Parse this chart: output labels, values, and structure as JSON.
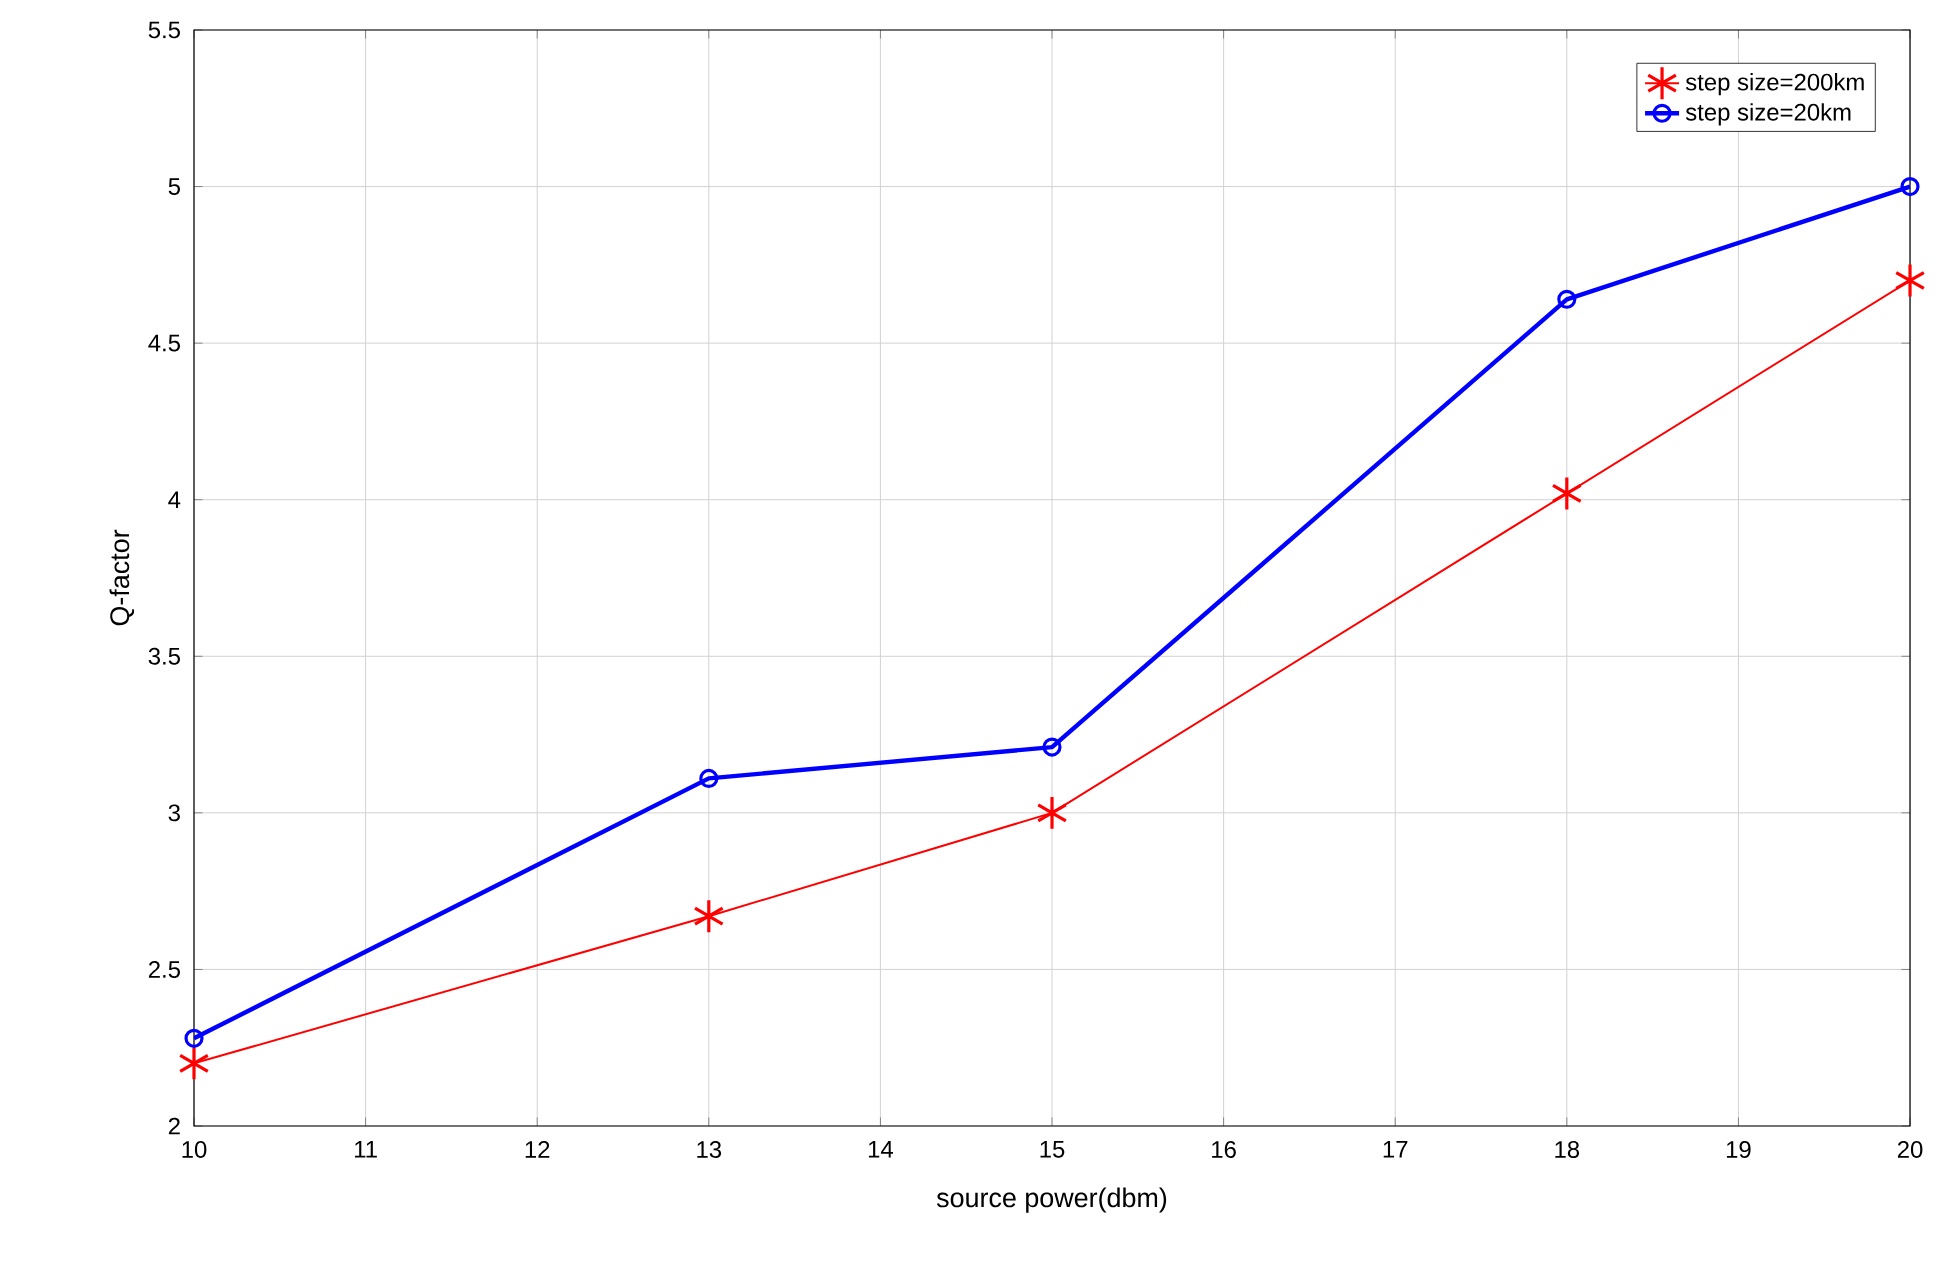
{
  "chart_data": {
    "type": "line",
    "xlabel": "source power(dbm)",
    "ylabel": "Q-factor",
    "x": [
      10,
      13,
      15,
      18,
      20
    ],
    "series": [
      {
        "name": "step size=200km",
        "color": "#ff0000",
        "marker": "cross",
        "values": [
          2.2,
          2.67,
          3.0,
          4.02,
          4.7
        ]
      },
      {
        "name": "step size=20km",
        "color": "#0000ff",
        "marker": "circle",
        "values": [
          2.28,
          3.11,
          3.21,
          4.64,
          5.0
        ]
      }
    ],
    "xlim": [
      10,
      20
    ],
    "xticks": [
      10,
      11,
      12,
      13,
      14,
      15,
      16,
      17,
      18,
      19,
      20
    ],
    "ylim": [
      2,
      5.5
    ],
    "yticks": [
      2,
      2.5,
      3,
      3.5,
      4,
      4.5,
      5,
      5.5
    ],
    "grid": true,
    "legend": "top right",
    "line_style": "solid"
  }
}
